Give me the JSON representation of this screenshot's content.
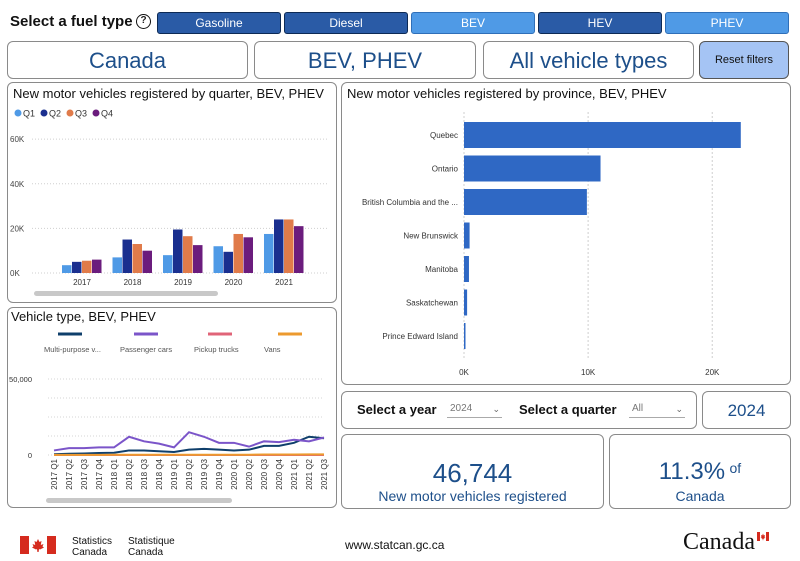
{
  "header": {
    "fuel_label": "Select a fuel type",
    "help_icon": "?",
    "fuel_types": [
      {
        "label": "Gasoline",
        "selected": false
      },
      {
        "label": "Diesel",
        "selected": false
      },
      {
        "label": "BEV",
        "selected": true
      },
      {
        "label": "HEV",
        "selected": false
      },
      {
        "label": "PHEV",
        "selected": true
      }
    ]
  },
  "filters": {
    "geo": "Canada",
    "fuel": "BEV, PHEV",
    "vehicle": "All vehicle types",
    "reset_label": "Reset filters"
  },
  "quarter_chart": {
    "title": "New motor vehicles registered by quarter, BEV, PHEV",
    "legend": [
      "Q1",
      "Q2",
      "Q3",
      "Q4"
    ],
    "colors": [
      "#4f9ae6",
      "#1a2f8f",
      "#e07b4a",
      "#6b1c7d"
    ],
    "y_ticks": [
      "0K",
      "20K",
      "40K",
      "60K"
    ],
    "ylim": [
      0,
      65000
    ],
    "categories": [
      "2017",
      "2018",
      "2019",
      "2020",
      "2021"
    ],
    "series": [
      {
        "name": "Q1",
        "values": [
          3500,
          7000,
          8000,
          12000,
          17500
        ]
      },
      {
        "name": "Q2",
        "values": [
          5000,
          15000,
          19500,
          9500,
          24000
        ]
      },
      {
        "name": "Q3",
        "values": [
          5500,
          13000,
          16500,
          17500,
          24000
        ]
      },
      {
        "name": "Q4",
        "values": [
          6000,
          10000,
          12500,
          16000,
          21000
        ]
      }
    ]
  },
  "province_chart": {
    "title": "New motor vehicles registered by province, BEV, PHEV",
    "categories": [
      "Quebec",
      "Ontario",
      "British Columbia and the ...",
      "New Brunswick",
      "Manitoba",
      "Saskatchewan",
      "Prince Edward Island"
    ],
    "values": [
      22300,
      11000,
      9900,
      450,
      400,
      250,
      100
    ],
    "x_ticks": [
      "0K",
      "10K",
      "20K"
    ],
    "xlim": [
      0,
      22800
    ],
    "color": "#2f68c4"
  },
  "vehicle_chart": {
    "title": "Vehicle type, BEV, PHEV",
    "legend": [
      {
        "name": "Multi-purpose v...",
        "color": "#0f3f6b"
      },
      {
        "name": "Passenger cars",
        "color": "#7b55c9"
      },
      {
        "name": "Pickup trucks",
        "color": "#e06478"
      },
      {
        "name": "Vans",
        "color": "#ec9a2e"
      }
    ],
    "y_ticks": [
      "0",
      "50,000"
    ],
    "ylim": [
      0,
      50000
    ],
    "x_labels": [
      "2017 Q1",
      "2017 Q2",
      "2017 Q3",
      "2017 Q4",
      "2018 Q1",
      "2018 Q2",
      "2018 Q3",
      "2018 Q4",
      "2019 Q1",
      "2019 Q2",
      "2019 Q3",
      "2019 Q4",
      "2020 Q1",
      "2020 Q2",
      "2020 Q3",
      "2020 Q4",
      "2021 Q1",
      "2021 Q2",
      "2021 Q3"
    ],
    "series": [
      {
        "name": "Multi-purpose v...",
        "values": [
          500,
          800,
          1000,
          1300,
          1500,
          3000,
          3000,
          2500,
          2000,
          3500,
          4000,
          3500,
          3000,
          3500,
          6000,
          6000,
          8000,
          12000,
          11000
        ]
      },
      {
        "name": "Passenger cars",
        "values": [
          3000,
          4500,
          4500,
          5000,
          5000,
          12000,
          9000,
          7500,
          5000,
          15000,
          12000,
          8000,
          8000,
          5500,
          9000,
          8500,
          10000,
          9000,
          11500
        ]
      },
      {
        "name": "Pickup trucks",
        "values": [
          0,
          0,
          0,
          0,
          0,
          0,
          0,
          0,
          0,
          0,
          0,
          0,
          0,
          0,
          0,
          0,
          0,
          0,
          0
        ]
      },
      {
        "name": "Vans",
        "values": [
          100,
          100,
          100,
          100,
          150,
          150,
          150,
          150,
          150,
          200,
          200,
          200,
          200,
          200,
          300,
          300,
          300,
          400,
          400
        ]
      }
    ]
  },
  "controls": {
    "year_label": "Select a year",
    "year_value": "2024",
    "quarter_label": "Select a quarter",
    "quarter_value": "All",
    "year_display": "2024"
  },
  "kpi": {
    "count": "46,744",
    "count_caption": "New motor vehicles registered",
    "pct": "11.3%",
    "pct_of": "of",
    "pct_caption": "Canada"
  },
  "footer": {
    "statcan_en_1": "Statistics",
    "statcan_en_2": "Canada",
    "statcan_fr_1": "Statistique",
    "statcan_fr_2": "Canada",
    "url": "www.statcan.gc.ca",
    "wordmark": "Canada"
  }
}
